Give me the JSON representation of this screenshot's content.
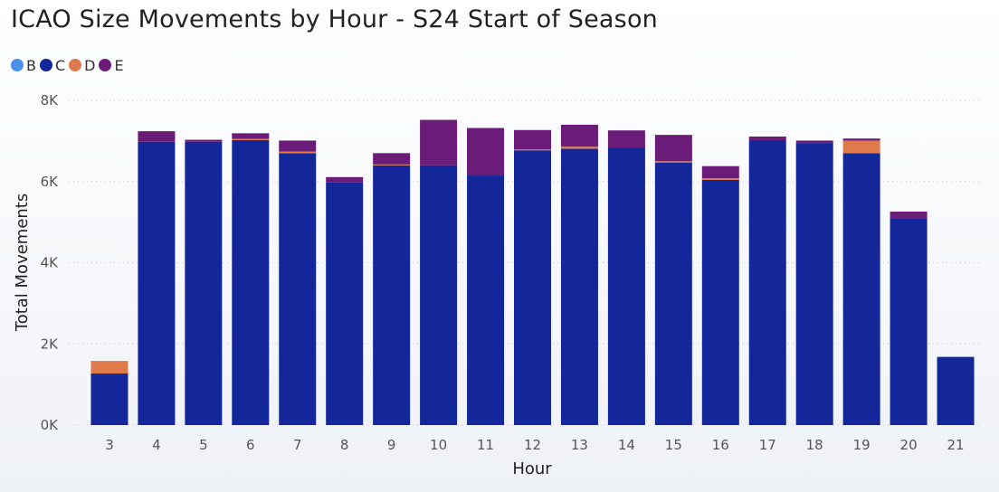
{
  "colors": {
    "B": "#4a8fe8",
    "C": "#13279b",
    "D": "#df7a4c",
    "E": "#6b1b78"
  },
  "chart_data": {
    "type": "bar",
    "stacked": true,
    "title": "ICAO Size Movements by Hour - S24 Start of Season",
    "xlabel": "Hour",
    "ylabel": "Total Movements",
    "ylim": [
      0,
      8000
    ],
    "yticks": [
      0,
      2000,
      4000,
      6000,
      8000
    ],
    "ytick_labels": [
      "0K",
      "2K",
      "4K",
      "6K",
      "8K"
    ],
    "grid": true,
    "legend_position": "top-left",
    "categories": [
      "3",
      "4",
      "5",
      "6",
      "7",
      "8",
      "9",
      "10",
      "11",
      "12",
      "13",
      "14",
      "15",
      "16",
      "17",
      "18",
      "19",
      "20",
      "21"
    ],
    "series": [
      {
        "name": "B",
        "values": [
          0,
          0,
          0,
          0,
          0,
          0,
          0,
          0,
          0,
          0,
          0,
          0,
          0,
          0,
          0,
          0,
          0,
          0,
          0
        ]
      },
      {
        "name": "C",
        "values": [
          1270,
          6980,
          6980,
          7020,
          6700,
          5980,
          6400,
          6400,
          6150,
          6770,
          6810,
          6840,
          6470,
          6040,
          7020,
          6950,
          6700,
          5100,
          1680
        ]
      },
      {
        "name": "D",
        "values": [
          310,
          0,
          0,
          30,
          40,
          0,
          20,
          0,
          0,
          20,
          50,
          0,
          30,
          40,
          0,
          0,
          310,
          0,
          0
        ]
      },
      {
        "name": "E",
        "values": [
          0,
          260,
          50,
          140,
          270,
          130,
          280,
          1120,
          1170,
          480,
          540,
          420,
          650,
          300,
          90,
          60,
          50,
          160,
          0
        ]
      }
    ]
  }
}
